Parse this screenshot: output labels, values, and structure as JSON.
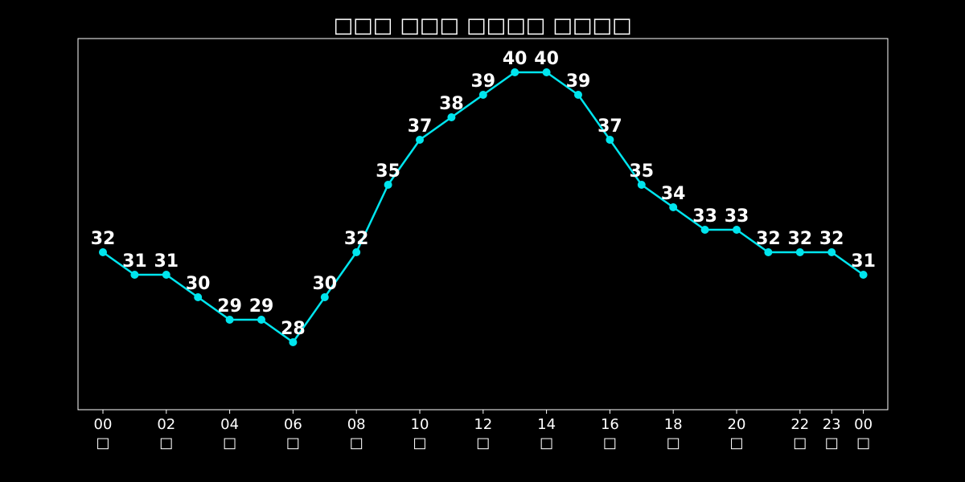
{
  "chart_data": {
    "type": "line",
    "title": "□□□ □□□ □□□□ □□□□",
    "xlabel": "",
    "ylabel": "",
    "x": [
      "00",
      "01",
      "02",
      "03",
      "04",
      "05",
      "06",
      "07",
      "08",
      "09",
      "10",
      "11",
      "12",
      "13",
      "14",
      "15",
      "16",
      "17",
      "18",
      "19",
      "20",
      "21",
      "22",
      "23",
      "00"
    ],
    "y": [
      32,
      31,
      31,
      30,
      29,
      29,
      28,
      30,
      32,
      35,
      37,
      38,
      39,
      40,
      40,
      39,
      37,
      35,
      34,
      33,
      33,
      32,
      32,
      32,
      31
    ],
    "x_tick_labels": [
      {
        "index": 0,
        "hour": "00",
        "unit": "□"
      },
      {
        "index": 2,
        "hour": "02",
        "unit": "□"
      },
      {
        "index": 4,
        "hour": "04",
        "unit": "□"
      },
      {
        "index": 6,
        "hour": "06",
        "unit": "□"
      },
      {
        "index": 8,
        "hour": "08",
        "unit": "□"
      },
      {
        "index": 10,
        "hour": "10",
        "unit": "□"
      },
      {
        "index": 12,
        "hour": "12",
        "unit": "□"
      },
      {
        "index": 14,
        "hour": "14",
        "unit": "□"
      },
      {
        "index": 16,
        "hour": "16",
        "unit": "□"
      },
      {
        "index": 18,
        "hour": "18",
        "unit": "□"
      },
      {
        "index": 20,
        "hour": "20",
        "unit": "□"
      },
      {
        "index": 22,
        "hour": "22",
        "unit": "□"
      },
      {
        "index": 23,
        "hour": "23",
        "unit": "□"
      },
      {
        "index": 24,
        "hour": "00",
        "unit": "□"
      }
    ],
    "ylim": [
      25,
      41.5
    ],
    "grid": false,
    "y_ticks_shown": false,
    "colors": {
      "background": "#000000",
      "line": "#00e5ee",
      "marker": "#00e5ee",
      "text": "#ffffff",
      "frame": "#ffffff"
    }
  }
}
